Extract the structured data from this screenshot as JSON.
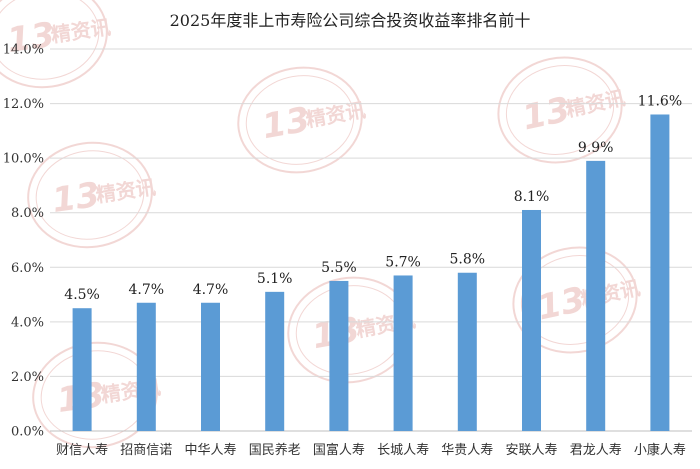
{
  "chart_data": {
    "type": "bar",
    "title": "2025年度非上市寿险公司综合投资收益率排名前十",
    "categories": [
      "财信人寿",
      "招商信诺",
      "中华人寿",
      "国民养老",
      "国富人寿",
      "长城人寿",
      "华贵人寿",
      "安联人寿",
      "君龙人寿",
      "小康人寿"
    ],
    "values": [
      4.5,
      4.7,
      4.7,
      5.1,
      5.5,
      5.7,
      5.8,
      8.1,
      9.9,
      11.6
    ],
    "data_labels": [
      "4.5%",
      "4.7%",
      "4.7%",
      "5.1%",
      "5.5%",
      "5.7%",
      "5.8%",
      "8.1%",
      "9.9%",
      "11.6%"
    ],
    "y_ticks": [
      "0.0%",
      "2.0%",
      "4.0%",
      "6.0%",
      "8.0%",
      "10.0%",
      "12.0%",
      "14.0%"
    ],
    "ylim": [
      0,
      14
    ],
    "xlabel": "",
    "ylabel": "",
    "grid": true,
    "bar_color": "#5b9bd5"
  },
  "watermark": {
    "number": "13",
    "text": "精资讯",
    "color": "#e9b8b4"
  }
}
